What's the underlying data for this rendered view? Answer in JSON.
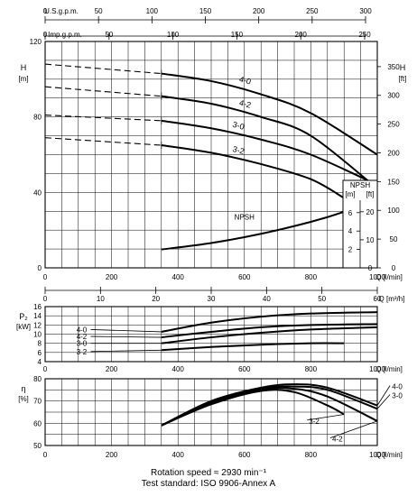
{
  "footer": {
    "rotation": "Rotation speed ≈ 2930 min⁻¹",
    "standard": "Test standard: ISO 9906-Annex A"
  },
  "chart_data": [
    {
      "type": "line",
      "panel": "head",
      "top_axes": [
        {
          "label": "U.S.g.p.m.",
          "ticks": [
            "0",
            "50",
            "100",
            "150",
            "200",
            "250",
            "300"
          ]
        },
        {
          "label": "Imp.g.p.m.",
          "ticks": [
            "0",
            "50",
            "100",
            "150",
            "200",
            "250"
          ]
        }
      ],
      "xlabel": "Q [l/min]",
      "xlim": [
        0,
        1000
      ],
      "x_ticks": [
        "0",
        "200",
        "400",
        "600",
        "800",
        "1000"
      ],
      "ylabel": "H [m]",
      "ylim": [
        0,
        120
      ],
      "y_ticks": [
        "0",
        "40",
        "80",
        "120"
      ],
      "y2label": "H [ft]",
      "y2_ticks": [
        "0",
        "50",
        "100",
        "150",
        "200",
        "250",
        "300",
        "350"
      ],
      "series": [
        {
          "name": "4-0",
          "x": [
            0,
            350,
            500,
            650,
            800,
            1000
          ],
          "y": [
            108,
            103,
            99,
            92,
            82,
            60
          ]
        },
        {
          "name": "4-2",
          "x": [
            0,
            350,
            500,
            650,
            800,
            1000
          ],
          "y": [
            96,
            91,
            87,
            80,
            70,
            42
          ]
        },
        {
          "name": "3-0",
          "x": [
            0,
            350,
            500,
            650,
            800,
            1000
          ],
          "y": [
            81,
            78,
            74,
            68,
            60,
            44
          ]
        },
        {
          "name": "3-2",
          "x": [
            0,
            350,
            500,
            650,
            800,
            900
          ],
          "y": [
            69,
            65,
            61,
            55,
            47,
            37
          ]
        },
        {
          "name": "NPSH",
          "x": [
            350,
            500,
            650,
            800,
            900,
            1000
          ],
          "y": [
            2.0,
            2.7,
            3.7,
            5.0,
            6.1,
            7.5
          ]
        }
      ],
      "npsh_axis": {
        "label": "NPSH",
        "units": [
          "[m]",
          "[ft]"
        ],
        "m_ticks": [
          "2",
          "4",
          "6"
        ],
        "ft_ticks": [
          "0",
          "10",
          "20"
        ]
      }
    },
    {
      "type": "line",
      "panel": "power",
      "top_axis_label": "Q [m³/h]",
      "top_axis_ticks": [
        "0",
        "10",
        "20",
        "30",
        "40",
        "50",
        "60"
      ],
      "ylabel": "P₂ [kW]",
      "ylim": [
        4,
        16
      ],
      "y_ticks": [
        "4",
        "6",
        "8",
        "10",
        "12",
        "14",
        "16"
      ],
      "xlabel": "Q [l/min]",
      "x_ticks": [
        "0",
        "200",
        "400",
        "600",
        "800",
        "1000"
      ],
      "series": [
        {
          "name": "4-0",
          "x": [
            350,
            500,
            650,
            800,
            1000
          ],
          "y": [
            10.5,
            12.5,
            13.8,
            14.5,
            14.8
          ]
        },
        {
          "name": "4-2",
          "x": [
            350,
            500,
            650,
            800,
            1000
          ],
          "y": [
            9.3,
            10.5,
            11.5,
            12.0,
            12.2
          ]
        },
        {
          "name": "3-0",
          "x": [
            350,
            500,
            650,
            800,
            1000
          ],
          "y": [
            8.0,
            9.3,
            10.3,
            11.0,
            11.5
          ]
        },
        {
          "name": "3-2",
          "x": [
            350,
            500,
            650,
            800,
            900
          ],
          "y": [
            6.5,
            7.2,
            7.7,
            8.0,
            8.0
          ]
        }
      ]
    },
    {
      "type": "line",
      "panel": "efficiency",
      "ylabel": "η [%]",
      "ylim": [
        50,
        80
      ],
      "y_ticks": [
        "50",
        "60",
        "70",
        "80"
      ],
      "xlabel": "Q [l/min]",
      "x_ticks": [
        "0",
        "200",
        "400",
        "600",
        "800",
        "1000"
      ],
      "series": [
        {
          "name": "4-0",
          "x": [
            350,
            500,
            650,
            750,
            850,
            1000
          ],
          "y": [
            59,
            70,
            76,
            77.5,
            76,
            68
          ]
        },
        {
          "name": "3-0",
          "x": [
            350,
            500,
            650,
            750,
            850,
            1000
          ],
          "y": [
            59,
            69.5,
            75.5,
            76.5,
            75,
            66.5
          ]
        },
        {
          "name": "4-2",
          "x": [
            350,
            500,
            650,
            750,
            850,
            1000
          ],
          "y": [
            59,
            69,
            75,
            75.5,
            72,
            61
          ]
        },
        {
          "name": "3-2",
          "x": [
            350,
            500,
            650,
            750,
            850,
            900
          ],
          "y": [
            59,
            68.5,
            74.5,
            74,
            68,
            64
          ]
        }
      ]
    }
  ]
}
